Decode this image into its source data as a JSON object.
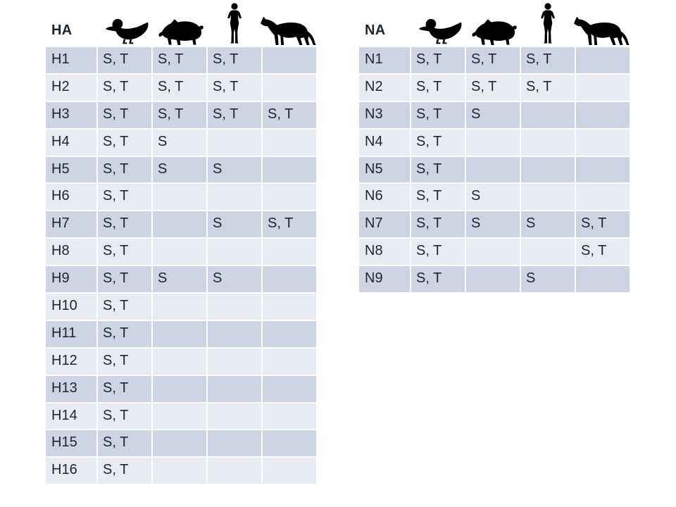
{
  "colors": {
    "background": "#ffffff",
    "band_dark": "#cdd4e4",
    "band_light": "#e9ebf4",
    "text": "#1f2430",
    "icon": "#000000"
  },
  "columns": [
    "duck",
    "pig",
    "human",
    "horse"
  ],
  "tables": [
    {
      "title": "HA",
      "rows": [
        {
          "label": "H1",
          "cells": [
            "S, T",
            "S, T",
            "S, T",
            ""
          ]
        },
        {
          "label": "H2",
          "cells": [
            "S, T",
            "S, T",
            "S, T",
            ""
          ]
        },
        {
          "label": "H3",
          "cells": [
            "S, T",
            "S, T",
            "S, T",
            "S, T"
          ]
        },
        {
          "label": "H4",
          "cells": [
            "S, T",
            "S",
            "",
            ""
          ]
        },
        {
          "label": "H5",
          "cells": [
            "S, T",
            "S",
            "S",
            ""
          ]
        },
        {
          "label": "H6",
          "cells": [
            "S, T",
            "",
            "",
            ""
          ]
        },
        {
          "label": "H7",
          "cells": [
            "S, T",
            "",
            "S",
            "S, T"
          ]
        },
        {
          "label": "H8",
          "cells": [
            "S, T",
            "",
            "",
            ""
          ]
        },
        {
          "label": "H9",
          "cells": [
            "S, T",
            "S",
            "S",
            ""
          ]
        },
        {
          "label": "H10",
          "cells": [
            "S, T",
            "",
            "",
            ""
          ]
        },
        {
          "label": "H11",
          "cells": [
            "S, T",
            "",
            "",
            ""
          ]
        },
        {
          "label": "H12",
          "cells": [
            "S, T",
            "",
            "",
            ""
          ]
        },
        {
          "label": "H13",
          "cells": [
            "S, T",
            "",
            "",
            ""
          ]
        },
        {
          "label": "H14",
          "cells": [
            "S, T",
            "",
            "",
            ""
          ]
        },
        {
          "label": "H15",
          "cells": [
            "S, T",
            "",
            "",
            ""
          ]
        },
        {
          "label": "H16",
          "cells": [
            "S, T",
            "",
            "",
            ""
          ]
        }
      ]
    },
    {
      "title": "NA",
      "rows": [
        {
          "label": "N1",
          "cells": [
            "S, T",
            "S, T",
            "S, T",
            ""
          ]
        },
        {
          "label": "N2",
          "cells": [
            "S, T",
            "S, T",
            "S, T",
            ""
          ]
        },
        {
          "label": "N3",
          "cells": [
            "S, T",
            "S",
            "",
            ""
          ]
        },
        {
          "label": "N4",
          "cells": [
            "S, T",
            "",
            "",
            ""
          ]
        },
        {
          "label": "N5",
          "cells": [
            "S, T",
            "",
            "",
            ""
          ]
        },
        {
          "label": "N6",
          "cells": [
            "S, T",
            "S",
            "",
            ""
          ]
        },
        {
          "label": "N7",
          "cells": [
            "S, T",
            "S",
            "S",
            "S, T"
          ]
        },
        {
          "label": "N8",
          "cells": [
            "S, T",
            "",
            "",
            "S, T"
          ]
        },
        {
          "label": "N9",
          "cells": [
            "S, T",
            "",
            "S",
            ""
          ]
        }
      ]
    }
  ]
}
